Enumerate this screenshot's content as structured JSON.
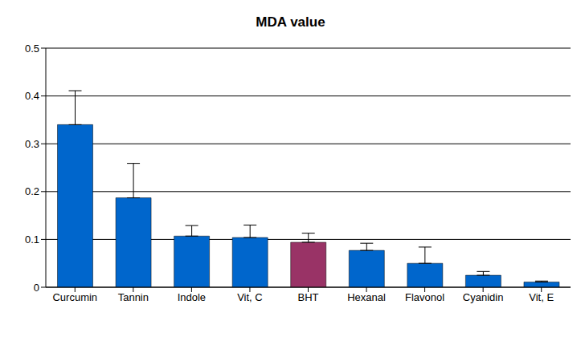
{
  "chart_data": {
    "type": "bar",
    "title": "MDA value",
    "categories": [
      "Curcumin",
      "Tannin",
      "Indole",
      "Vit, C",
      "BHT",
      "Hexanal",
      "Flavonol",
      "Cyanidin",
      "Vit, E"
    ],
    "values": [
      0.34,
      0.187,
      0.107,
      0.104,
      0.094,
      0.077,
      0.05,
      0.025,
      0.011
    ],
    "errors": [
      0.071,
      0.072,
      0.022,
      0.026,
      0.019,
      0.015,
      0.034,
      0.008,
      0.002
    ],
    "colors": [
      "#0066cc",
      "#0066cc",
      "#0066cc",
      "#0066cc",
      "#993366",
      "#0066cc",
      "#0066cc",
      "#0066cc",
      "#0066cc"
    ],
    "ylim": [
      0,
      0.5
    ],
    "yticks": [
      0,
      0.1,
      0.2,
      0.3,
      0.4,
      0.5
    ],
    "grid": true
  }
}
